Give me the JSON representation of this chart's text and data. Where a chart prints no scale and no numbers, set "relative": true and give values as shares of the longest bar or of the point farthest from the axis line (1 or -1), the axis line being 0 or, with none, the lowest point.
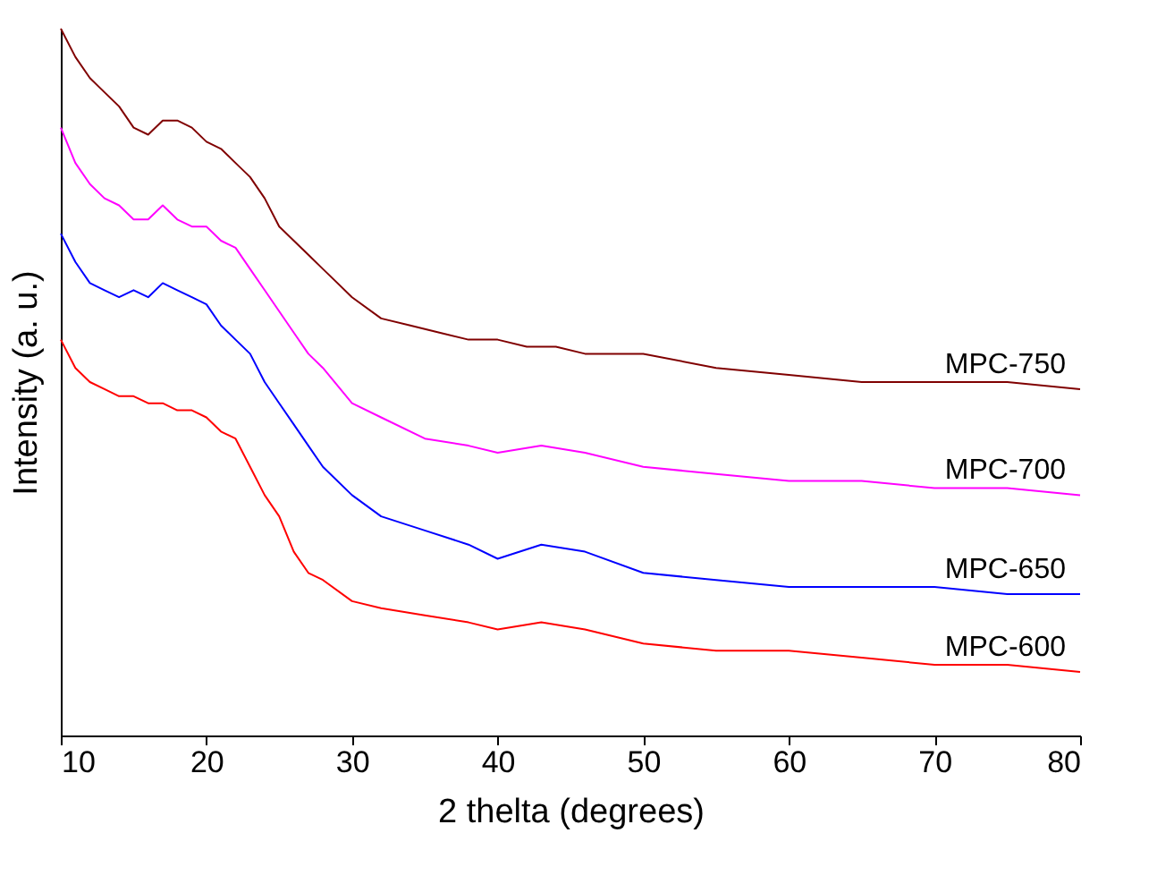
{
  "chart_data": {
    "type": "line",
    "relative": true,
    "xlabel": "2 thelta (degrees)",
    "ylabel": "Intensity (a. u.)",
    "xlim": [
      10,
      80
    ],
    "xticks": [
      10,
      20,
      30,
      40,
      50,
      60,
      70,
      80
    ],
    "grid": false,
    "legend": false,
    "marker": "none",
    "line_style": "solid",
    "series": [
      {
        "name": "MPC-750",
        "color": "#800000",
        "x": [
          10,
          11,
          12,
          13,
          14,
          15,
          16,
          17,
          18,
          19,
          20,
          21,
          22,
          23,
          24,
          25,
          26,
          27,
          28,
          29,
          30,
          32,
          34,
          36,
          38,
          40,
          42,
          44,
          46,
          50,
          55,
          60,
          65,
          70,
          75,
          80
        ],
        "values": [
          1.0,
          0.96,
          0.93,
          0.91,
          0.89,
          0.86,
          0.85,
          0.87,
          0.87,
          0.86,
          0.84,
          0.83,
          0.81,
          0.79,
          0.76,
          0.72,
          0.7,
          0.68,
          0.66,
          0.64,
          0.62,
          0.59,
          0.58,
          0.57,
          0.56,
          0.56,
          0.55,
          0.55,
          0.54,
          0.54,
          0.52,
          0.51,
          0.5,
          0.5,
          0.5,
          0.49
        ]
      },
      {
        "name": "MPC-700",
        "color": "#ff00ff",
        "x": [
          10,
          11,
          12,
          13,
          14,
          15,
          16,
          17,
          18,
          19,
          20,
          21,
          22,
          23,
          24,
          25,
          26,
          27,
          28,
          30,
          32,
          35,
          38,
          40,
          43,
          46,
          50,
          55,
          60,
          65,
          70,
          75,
          80
        ],
        "values": [
          0.86,
          0.81,
          0.78,
          0.76,
          0.75,
          0.73,
          0.73,
          0.75,
          0.73,
          0.72,
          0.72,
          0.7,
          0.69,
          0.66,
          0.63,
          0.6,
          0.57,
          0.54,
          0.52,
          0.47,
          0.45,
          0.42,
          0.41,
          0.4,
          0.41,
          0.4,
          0.38,
          0.37,
          0.36,
          0.36,
          0.35,
          0.35,
          0.34
        ]
      },
      {
        "name": "MPC-650",
        "color": "#0000ff",
        "x": [
          10,
          11,
          12,
          13,
          14,
          15,
          16,
          17,
          18,
          19,
          20,
          21,
          22,
          23,
          24,
          25,
          26,
          27,
          28,
          30,
          32,
          35,
          38,
          40,
          43,
          46,
          50,
          55,
          60,
          65,
          70,
          75,
          80
        ],
        "values": [
          0.71,
          0.67,
          0.64,
          0.63,
          0.62,
          0.63,
          0.62,
          0.64,
          0.63,
          0.62,
          0.61,
          0.58,
          0.56,
          0.54,
          0.5,
          0.47,
          0.44,
          0.41,
          0.38,
          0.34,
          0.31,
          0.29,
          0.27,
          0.25,
          0.27,
          0.26,
          0.23,
          0.22,
          0.21,
          0.21,
          0.21,
          0.2,
          0.2
        ]
      },
      {
        "name": "MPC-600",
        "color": "#ff0000",
        "x": [
          10,
          11,
          12,
          13,
          14,
          15,
          16,
          17,
          18,
          19,
          20,
          21,
          22,
          23,
          24,
          25,
          26,
          27,
          28,
          30,
          32,
          35,
          38,
          40,
          43,
          46,
          50,
          55,
          60,
          65,
          70,
          75,
          80
        ],
        "values": [
          0.56,
          0.52,
          0.5,
          0.49,
          0.48,
          0.48,
          0.47,
          0.47,
          0.46,
          0.46,
          0.45,
          0.43,
          0.42,
          0.38,
          0.34,
          0.31,
          0.26,
          0.23,
          0.22,
          0.19,
          0.18,
          0.17,
          0.16,
          0.15,
          0.16,
          0.15,
          0.13,
          0.12,
          0.12,
          0.11,
          0.1,
          0.1,
          0.09
        ]
      }
    ]
  }
}
